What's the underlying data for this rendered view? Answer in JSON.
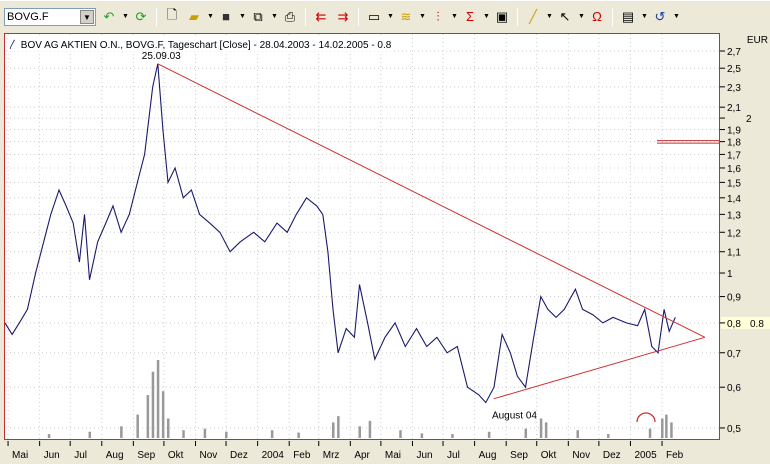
{
  "toolbar": {
    "symbol": "BOVG.F",
    "icons": [
      "refresh-arrow-icon",
      "reload-icon",
      "new-document-icon",
      "open-folder-icon",
      "save-disk-icon",
      "copy-icon",
      "print-icon",
      "import-icon",
      "export-icon",
      "window-icon",
      "indicator-icon",
      "chart-type-icon",
      "sigma-icon",
      "properties-icon",
      "draw-line-icon",
      "pointer-icon",
      "magnet-icon",
      "notes-icon",
      "undo-icon"
    ]
  },
  "chart": {
    "title": "BOV AG AKTIEN O.N., BOVG.F, Tageschart [Close] - 28.04.2003 - 14.02.2005 - 0.8",
    "currency": "EUR",
    "current_value": "0.8"
  },
  "chart_data": {
    "type": "line",
    "yscale": "log",
    "ylim": [
      0.48,
      2.8
    ],
    "grid": true,
    "y_ticks": [
      "2,7",
      "2,5",
      "2,3",
      "2,1",
      "2",
      "1,9",
      "1,8",
      "1,7",
      "1,6",
      "1,5",
      "1,4",
      "1,3",
      "1,2",
      "1,1",
      "1",
      "0,9",
      "0,8",
      "0,7",
      "0,6",
      "0,5"
    ],
    "y_tick_values": [
      2.7,
      2.5,
      2.3,
      2.1,
      2.0,
      1.9,
      1.8,
      1.7,
      1.6,
      1.5,
      1.4,
      1.3,
      1.2,
      1.1,
      1.0,
      0.9,
      0.8,
      0.7,
      0.6,
      0.5
    ],
    "x_ticks": [
      "Mai",
      "Jun",
      "Jul",
      "Aug",
      "Sep",
      "Okt",
      "Nov",
      "Dez",
      "2004",
      "Feb",
      "Mrz",
      "Apr",
      "Mai",
      "Jun",
      "Jul",
      "Aug",
      "Sep",
      "Okt",
      "Nov",
      "Dez",
      "2005",
      "Feb"
    ],
    "x_tick_dates": [
      "2003-05-01",
      "2003-06-01",
      "2003-07-01",
      "2003-08-01",
      "2003-09-01",
      "2003-10-01",
      "2003-11-01",
      "2003-12-01",
      "2004-01-01",
      "2004-02-01",
      "2004-03-01",
      "2004-04-01",
      "2004-05-01",
      "2004-06-01",
      "2004-07-01",
      "2004-08-01",
      "2004-09-01",
      "2004-10-01",
      "2004-11-01",
      "2004-12-01",
      "2005-01-01",
      "2005-02-01"
    ],
    "xlim": [
      "2003-04-28",
      "2005-03-25"
    ],
    "series": [
      {
        "color": "#1a1a6e",
        "points": [
          [
            "2003-04-28",
            0.8
          ],
          [
            "2003-05-05",
            0.76
          ],
          [
            "2003-05-12",
            0.8
          ],
          [
            "2003-05-20",
            0.85
          ],
          [
            "2003-05-28",
            1.0
          ],
          [
            "2003-06-05",
            1.15
          ],
          [
            "2003-06-12",
            1.3
          ],
          [
            "2003-06-20",
            1.45
          ],
          [
            "2003-06-27",
            1.35
          ],
          [
            "2003-07-04",
            1.25
          ],
          [
            "2003-07-10",
            1.05
          ],
          [
            "2003-07-15",
            1.3
          ],
          [
            "2003-07-20",
            0.97
          ],
          [
            "2003-07-28",
            1.15
          ],
          [
            "2003-08-05",
            1.25
          ],
          [
            "2003-08-12",
            1.35
          ],
          [
            "2003-08-20",
            1.2
          ],
          [
            "2003-08-28",
            1.3
          ],
          [
            "2003-09-05",
            1.5
          ],
          [
            "2003-09-12",
            1.7
          ],
          [
            "2003-09-20",
            2.3
          ],
          [
            "2003-09-25",
            2.55
          ],
          [
            "2003-09-30",
            1.9
          ],
          [
            "2003-10-05",
            1.5
          ],
          [
            "2003-10-12",
            1.6
          ],
          [
            "2003-10-20",
            1.4
          ],
          [
            "2003-10-28",
            1.45
          ],
          [
            "2003-11-05",
            1.3
          ],
          [
            "2003-11-15",
            1.25
          ],
          [
            "2003-11-25",
            1.2
          ],
          [
            "2003-12-05",
            1.1
          ],
          [
            "2003-12-15",
            1.15
          ],
          [
            "2003-12-28",
            1.2
          ],
          [
            "2004-01-08",
            1.15
          ],
          [
            "2004-01-20",
            1.25
          ],
          [
            "2004-01-30",
            1.2
          ],
          [
            "2004-02-08",
            1.3
          ],
          [
            "2004-02-18",
            1.4
          ],
          [
            "2004-02-28",
            1.35
          ],
          [
            "2004-03-05",
            1.3
          ],
          [
            "2004-03-10",
            1.1
          ],
          [
            "2004-03-15",
            0.85
          ],
          [
            "2004-03-20",
            0.7
          ],
          [
            "2004-03-28",
            0.78
          ],
          [
            "2004-04-05",
            0.75
          ],
          [
            "2004-04-10",
            0.95
          ],
          [
            "2004-04-18",
            0.8
          ],
          [
            "2004-04-25",
            0.68
          ],
          [
            "2004-05-05",
            0.75
          ],
          [
            "2004-05-15",
            0.8
          ],
          [
            "2004-05-25",
            0.72
          ],
          [
            "2004-06-05",
            0.78
          ],
          [
            "2004-06-15",
            0.72
          ],
          [
            "2004-06-25",
            0.75
          ],
          [
            "2004-07-05",
            0.7
          ],
          [
            "2004-07-15",
            0.72
          ],
          [
            "2004-07-25",
            0.6
          ],
          [
            "2004-08-05",
            0.58
          ],
          [
            "2004-08-12",
            0.56
          ],
          [
            "2004-08-20",
            0.6
          ],
          [
            "2004-08-28",
            0.76
          ],
          [
            "2004-09-05",
            0.7
          ],
          [
            "2004-09-12",
            0.63
          ],
          [
            "2004-09-20",
            0.6
          ],
          [
            "2004-09-28",
            0.75
          ],
          [
            "2004-10-05",
            0.9
          ],
          [
            "2004-10-12",
            0.85
          ],
          [
            "2004-10-20",
            0.82
          ],
          [
            "2004-10-28",
            0.85
          ],
          [
            "2004-11-08",
            0.93
          ],
          [
            "2004-11-15",
            0.85
          ],
          [
            "2004-11-25",
            0.83
          ],
          [
            "2004-12-05",
            0.8
          ],
          [
            "2004-12-15",
            0.82
          ],
          [
            "2004-12-28",
            0.8
          ],
          [
            "2005-01-08",
            0.79
          ],
          [
            "2005-01-15",
            0.85
          ],
          [
            "2005-01-22",
            0.72
          ],
          [
            "2005-01-28",
            0.7
          ],
          [
            "2005-02-03",
            0.85
          ],
          [
            "2005-02-08",
            0.77
          ],
          [
            "2005-02-14",
            0.82
          ]
        ]
      }
    ],
    "trendlines": [
      {
        "color": "#d03030",
        "from": [
          "2003-09-25",
          2.55
        ],
        "to": [
          "2005-03-15",
          0.75
        ]
      },
      {
        "color": "#d03030",
        "from": [
          "2004-08-20",
          0.57
        ],
        "to": [
          "2005-03-15",
          0.75
        ]
      }
    ],
    "annotations": [
      {
        "text": "25.09.03",
        "date": "2003-09-25",
        "value": 2.55
      },
      {
        "text": "August 04",
        "date": "2004-08-20",
        "value": 0.57
      }
    ],
    "horizontal_line": {
      "color": "#c03030",
      "value": 1.8
    },
    "volume": [
      [
        "2003-06-10",
        0.05
      ],
      [
        "2003-07-20",
        0.08
      ],
      [
        "2003-08-20",
        0.15
      ],
      [
        "2003-09-05",
        0.3
      ],
      [
        "2003-09-15",
        0.55
      ],
      [
        "2003-09-20",
        0.85
      ],
      [
        "2003-09-25",
        1.0
      ],
      [
        "2003-09-30",
        0.6
      ],
      [
        "2003-10-05",
        0.25
      ],
      [
        "2003-10-20",
        0.1
      ],
      [
        "2003-11-10",
        0.12
      ],
      [
        "2003-12-01",
        0.08
      ],
      [
        "2004-01-15",
        0.1
      ],
      [
        "2004-02-10",
        0.07
      ],
      [
        "2004-03-15",
        0.2
      ],
      [
        "2004-03-20",
        0.28
      ],
      [
        "2004-04-10",
        0.15
      ],
      [
        "2004-04-20",
        0.22
      ],
      [
        "2004-05-20",
        0.1
      ],
      [
        "2004-06-10",
        0.06
      ],
      [
        "2004-07-10",
        0.05
      ],
      [
        "2004-08-15",
        0.08
      ],
      [
        "2004-09-20",
        0.12
      ],
      [
        "2004-10-05",
        0.25
      ],
      [
        "2004-10-10",
        0.2
      ],
      [
        "2004-11-10",
        0.1
      ],
      [
        "2004-12-10",
        0.05
      ],
      [
        "2005-01-20",
        0.12
      ],
      [
        "2005-02-01",
        0.25
      ],
      [
        "2005-02-05",
        0.3
      ],
      [
        "2005-02-10",
        0.2
      ]
    ]
  }
}
